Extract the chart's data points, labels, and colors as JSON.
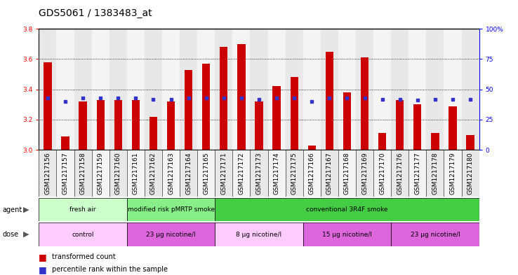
{
  "title": "GDS5061 / 1383483_at",
  "samples": [
    "GSM1217156",
    "GSM1217157",
    "GSM1217158",
    "GSM1217159",
    "GSM1217160",
    "GSM1217161",
    "GSM1217162",
    "GSM1217163",
    "GSM1217164",
    "GSM1217165",
    "GSM1217171",
    "GSM1217172",
    "GSM1217173",
    "GSM1217174",
    "GSM1217175",
    "GSM1217166",
    "GSM1217167",
    "GSM1217168",
    "GSM1217169",
    "GSM1217170",
    "GSM1217176",
    "GSM1217177",
    "GSM1217178",
    "GSM1217179",
    "GSM1217180"
  ],
  "bar_values": [
    3.58,
    3.09,
    3.32,
    3.33,
    3.33,
    3.33,
    3.22,
    3.32,
    3.53,
    3.57,
    3.68,
    3.7,
    3.32,
    3.42,
    3.48,
    3.03,
    3.65,
    3.38,
    3.61,
    3.11,
    3.33,
    3.3,
    3.11,
    3.29,
    3.1
  ],
  "percentile_values": [
    43,
    40,
    43,
    43,
    43,
    43,
    42,
    42,
    43,
    43,
    43,
    43,
    42,
    43,
    43,
    40,
    43,
    43,
    43,
    42,
    42,
    41,
    42,
    42,
    42
  ],
  "ymin": 3.0,
  "ymax": 3.8,
  "yticks": [
    3.0,
    3.2,
    3.4,
    3.6,
    3.8
  ],
  "right_yticks": [
    0,
    25,
    50,
    75,
    100
  ],
  "right_ytick_labels": [
    "0",
    "25",
    "50",
    "75",
    "100%"
  ],
  "bar_color": "#cc0000",
  "dot_color": "#3333cc",
  "agent_groups": [
    {
      "label": "fresh air",
      "start": 0,
      "end": 5,
      "color": "#ccffcc"
    },
    {
      "label": "modified risk pMRTP smoke",
      "start": 5,
      "end": 10,
      "color": "#88ee88"
    },
    {
      "label": "conventional 3R4F smoke",
      "start": 10,
      "end": 25,
      "color": "#44cc44"
    }
  ],
  "dose_groups": [
    {
      "label": "control",
      "start": 0,
      "end": 5,
      "color": "#ffccff"
    },
    {
      "label": "23 µg nicotine/l",
      "start": 5,
      "end": 10,
      "color": "#dd66dd"
    },
    {
      "label": "8 µg nicotine/l",
      "start": 10,
      "end": 15,
      "color": "#ffccff"
    },
    {
      "label": "15 µg nicotine/l",
      "start": 15,
      "end": 20,
      "color": "#dd66dd"
    },
    {
      "label": "23 µg nicotine/l",
      "start": 20,
      "end": 25,
      "color": "#dd66dd"
    }
  ],
  "col_bg_even": "#e8e8e8",
  "col_bg_odd": "#f4f4f4",
  "grid_color": "#000000",
  "title_fontsize": 10,
  "tick_fontsize": 6.5,
  "label_fontsize": 7,
  "bar_width": 0.45
}
